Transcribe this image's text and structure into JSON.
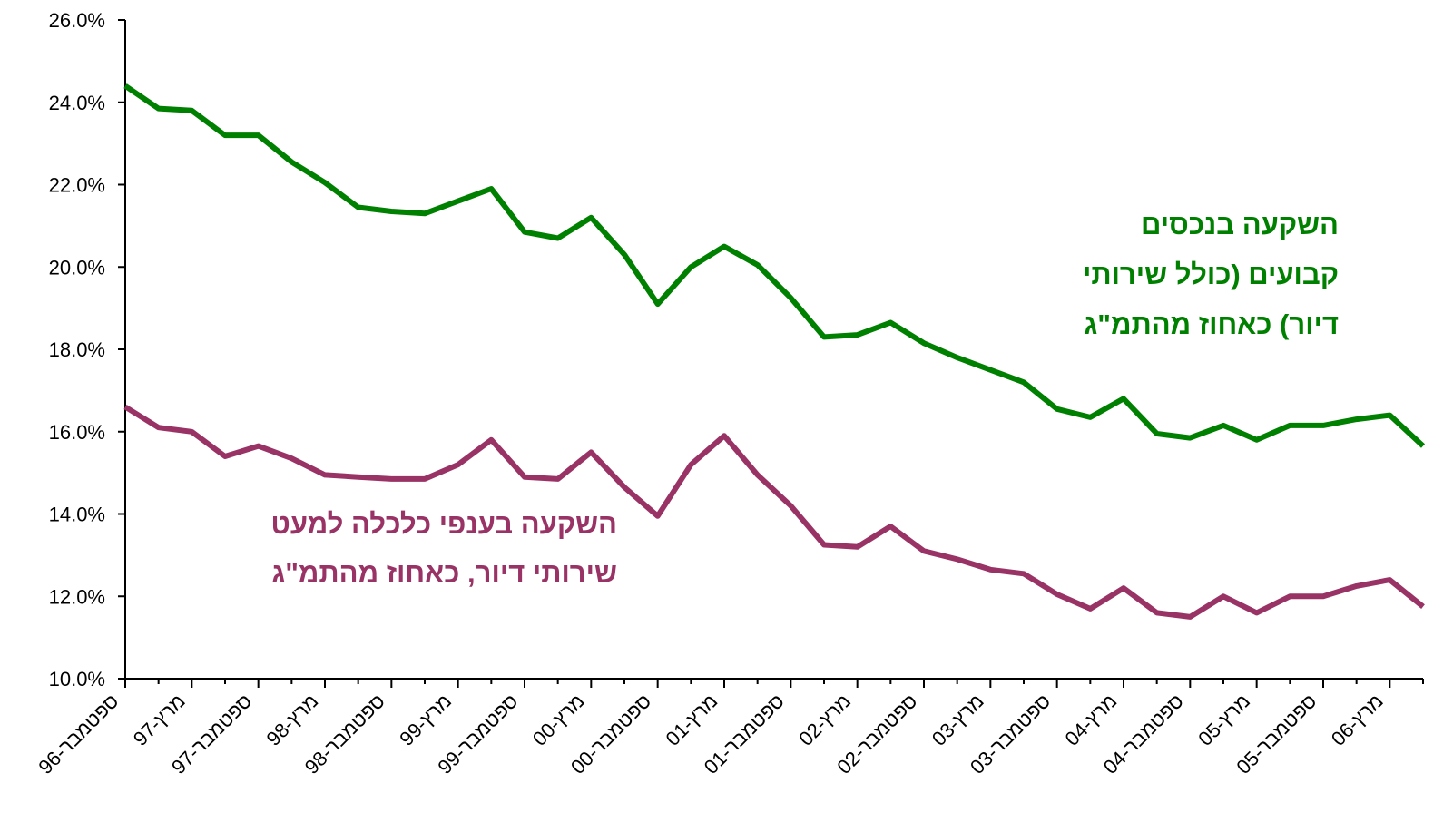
{
  "chart_data": {
    "type": "line",
    "categories": [
      "ספטמבר-96",
      null,
      "מרץ-97",
      null,
      "ספטמבר-97",
      null,
      "מרץ-98",
      null,
      "ספטמבר-98",
      null,
      "מרץ-99",
      null,
      "ספטמבר-99",
      null,
      "מרץ-00",
      null,
      "ספטמבר-00",
      null,
      "מרץ-01",
      null,
      "ספטמבר-01",
      null,
      "מרץ-02",
      null,
      "ספטמבר-02",
      null,
      "מרץ-03",
      null,
      "ספטמבר-03",
      null,
      "מרץ-04",
      null,
      "ספטמבר-04",
      null,
      "מרץ-05",
      null,
      "ספטמבר-05",
      null,
      "מרץ-06",
      null
    ],
    "series": [
      {
        "name": [
          "השקעה בנכסים",
          "קבועים (כולל שירותי",
          "דיור) כאחוז מהתמ\"ג"
        ],
        "color": "#008000",
        "values": [
          24.4,
          23.85,
          23.8,
          23.2,
          23.2,
          22.55,
          22.05,
          21.45,
          21.35,
          21.3,
          21.6,
          21.9,
          20.85,
          20.7,
          21.2,
          20.3,
          19.1,
          20.0,
          20.5,
          20.05,
          19.25,
          18.3,
          18.35,
          18.65,
          18.15,
          17.8,
          17.5,
          17.2,
          16.55,
          16.35,
          16.8,
          15.95,
          15.85,
          16.15,
          15.8,
          16.15,
          16.15,
          16.3,
          16.4,
          15.65
        ]
      },
      {
        "name": [
          "השקעה בענפי כלכלה למעט",
          "שירותי דיור, כאחוז מהתמ\"ג"
        ],
        "color": "#993366",
        "values": [
          16.6,
          16.1,
          16.0,
          15.4,
          15.65,
          15.35,
          14.95,
          14.9,
          14.85,
          14.85,
          15.2,
          15.8,
          14.9,
          14.85,
          15.5,
          14.65,
          13.95,
          15.2,
          15.9,
          14.95,
          14.2,
          13.25,
          13.2,
          13.7,
          13.1,
          12.9,
          12.65,
          12.55,
          12.05,
          11.7,
          12.2,
          11.6,
          11.5,
          12.0,
          11.6,
          12.0,
          12.0,
          12.25,
          12.4,
          11.75
        ]
      }
    ],
    "ylim": [
      10,
      26
    ],
    "yticks": [
      {
        "value": 10,
        "label": "10.0%"
      },
      {
        "value": 12,
        "label": "12.0%"
      },
      {
        "value": 14,
        "label": "14.0%"
      },
      {
        "value": 16,
        "label": "16.0%"
      },
      {
        "value": 18,
        "label": "18.0%"
      },
      {
        "value": 20,
        "label": "20.0%"
      },
      {
        "value": 22,
        "label": "22.0%"
      },
      {
        "value": 24,
        "label": "24.0%"
      },
      {
        "value": 26,
        "label": "26.0%"
      }
    ],
    "grid": false
  }
}
